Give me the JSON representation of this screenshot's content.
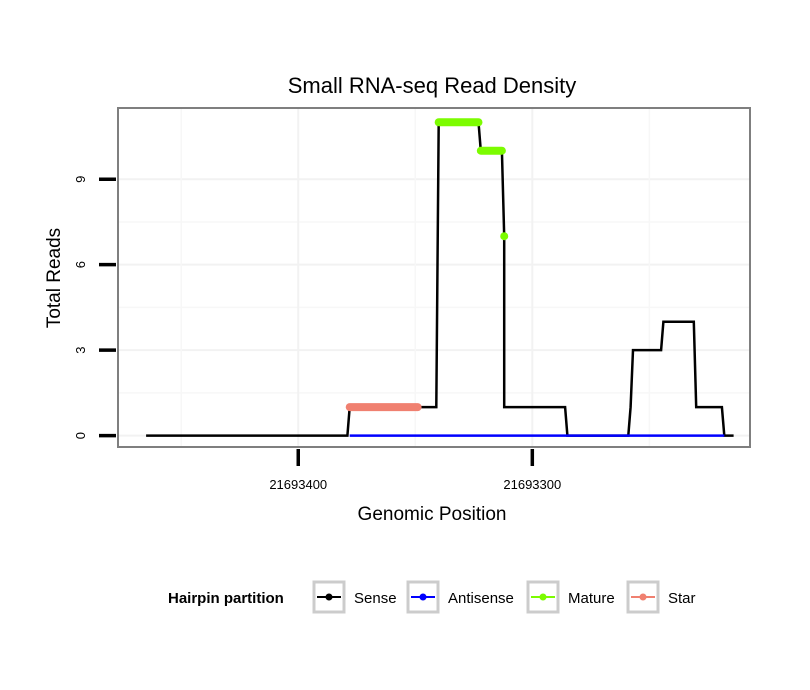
{
  "chart_data": {
    "type": "line",
    "title": "Small RNA-seq Read Density",
    "xlabel": "Genomic Position",
    "ylabel": "Total Reads",
    "x_reversed": true,
    "xlim": [
      21693477,
      21693207
    ],
    "ylim": [
      -0.4,
      11.5
    ],
    "x_ticks": [
      21693400,
      21693300
    ],
    "x_tick_labels": [
      "21693400",
      "21693300"
    ],
    "y_ticks": [
      0,
      3,
      6,
      9
    ],
    "y_tick_labels": [
      "0",
      "3",
      "6",
      "9"
    ],
    "grid": true,
    "legend": {
      "position": "bottom",
      "title": "Hairpin partition",
      "entries": [
        {
          "name": "Sense",
          "color": "#000000"
        },
        {
          "name": "Antisense",
          "color": "#0000ff"
        },
        {
          "name": "Mature",
          "color": "#7cfc00"
        },
        {
          "name": "Star",
          "color": "#f08070"
        }
      ]
    },
    "series": [
      {
        "name": "Sense",
        "color": "#000000",
        "style": "line",
        "points": [
          [
            21693465,
            0
          ],
          [
            21693379,
            0
          ],
          [
            21693378,
            1
          ],
          [
            21693341,
            1
          ],
          [
            21693340,
            11
          ],
          [
            21693323,
            11
          ],
          [
            21693322,
            10
          ],
          [
            21693313,
            10
          ],
          [
            21693312,
            7
          ],
          [
            21693312,
            1
          ],
          [
            21693286,
            1
          ],
          [
            21693285,
            0
          ],
          [
            21693259,
            0
          ],
          [
            21693258,
            1
          ],
          [
            21693257,
            3
          ],
          [
            21693245,
            3
          ],
          [
            21693244,
            4
          ],
          [
            21693231,
            4
          ],
          [
            21693230,
            1
          ],
          [
            21693219,
            1
          ],
          [
            21693218,
            0
          ],
          [
            21693214,
            0
          ]
        ]
      },
      {
        "name": "Antisense",
        "color": "#0000ff",
        "style": "line",
        "points": [
          [
            21693378,
            0
          ],
          [
            21693218,
            0
          ]
        ]
      },
      {
        "name": "Mature",
        "color": "#7cfc00",
        "style": "thick",
        "segments": [
          [
            [
              21693340,
              11
            ],
            [
              21693323,
              11
            ]
          ],
          [
            [
              21693322,
              10
            ],
            [
              21693313,
              10
            ]
          ],
          [
            [
              21693312,
              7
            ],
            [
              21693312,
              7
            ]
          ]
        ]
      },
      {
        "name": "Star",
        "color": "#f08070",
        "style": "thick",
        "segments": [
          [
            [
              21693378,
              1
            ],
            [
              21693349,
              1
            ]
          ]
        ]
      }
    ]
  }
}
